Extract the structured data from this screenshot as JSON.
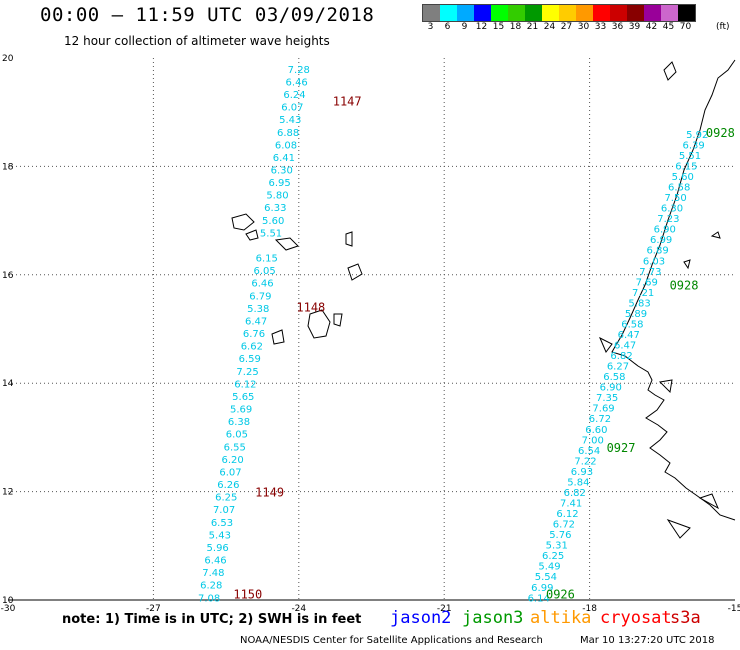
{
  "header": {
    "title": "00:00 – 11:59 UTC 03/09/2018",
    "subtitle": "12 hour collection of altimeter wave heights"
  },
  "color_scale": {
    "labels": [
      "3",
      "6",
      "9",
      "12",
      "15",
      "18",
      "21",
      "24",
      "27",
      "30",
      "33",
      "36",
      "39",
      "42",
      "45",
      "70"
    ],
    "unit": "(ft)",
    "colors": [
      "#7f7f7f",
      "#00ffff",
      "#00aaff",
      "#0000ff",
      "#00ff00",
      "#33cc00",
      "#009900",
      "#ffff00",
      "#ffcc00",
      "#ff9900",
      "#ff0000",
      "#cc0000",
      "#880000",
      "#990099",
      "#cc66cc",
      "#000000"
    ]
  },
  "chart_data": {
    "type": "map",
    "xlim": [
      -30,
      -15
    ],
    "ylim": [
      10,
      20
    ],
    "x_ticks": [
      "-30",
      "-27",
      "-24",
      "-21",
      "-18",
      "-15"
    ],
    "y_ticks": [
      "10",
      "12",
      "14",
      "16",
      "18",
      "20"
    ],
    "grid": true,
    "tracks": [
      {
        "label_color": "#00c8e6",
        "lon_start": -24.0,
        "lat_start": 19.8,
        "lon_end": -25.85,
        "lat_end": 10.05,
        "swh_ft": [
          "7.28",
          "6.46",
          "6.24",
          "6.07",
          "5.43",
          "6.88",
          "6.08",
          "6.41",
          "6.30",
          "6.95",
          "5.80",
          "6.33",
          "5.60",
          "5.51",
          "",
          "6.15",
          "6.05",
          "6.46",
          "6.79",
          "5.38",
          "6.47",
          "6.76",
          "6.62",
          "6.59",
          "7.25",
          "6.12",
          "5.65",
          "5.69",
          "6.38",
          "6.05",
          "6.55",
          "6.20",
          "6.07",
          "6.26",
          "6.25",
          "7.07",
          "6.53",
          "5.43",
          "5.96",
          "6.46",
          "7.48",
          "6.28",
          "7.08"
        ]
      },
      {
        "label_color": "#00c8e6",
        "lon_start": -15.78,
        "lat_start": 18.6,
        "lon_end": -19.05,
        "lat_end": 10.05,
        "swh_ft": [
          "5.92",
          "6.39",
          "5.51",
          "6.15",
          "5.60",
          "6.58",
          "7.50",
          "6.30",
          "7.23",
          "6.90",
          "6.99",
          "6.89",
          "6.03",
          "7.73",
          "7.69",
          "7.21",
          "5.83",
          "5.89",
          "6.58",
          "6.47",
          "6.47",
          "6.82",
          "6.27",
          "6.58",
          "6.90",
          "7.35",
          "7.69",
          "6.72",
          "6.60",
          "7.00",
          "6.54",
          "7.22",
          "6.93",
          "5.84",
          "6.82",
          "7.41",
          "6.12",
          "6.72",
          "5.76",
          "5.31",
          "6.25",
          "5.49",
          "5.54",
          "6.99",
          "6.14"
        ]
      }
    ],
    "time_labels": [
      {
        "text": "1147",
        "lon": -23.3,
        "lat": 19.2,
        "color": "#880000"
      },
      {
        "text": "1148",
        "lon": -24.05,
        "lat": 15.4,
        "color": "#880000"
      },
      {
        "text": "1149",
        "lon": -24.9,
        "lat": 11.98,
        "color": "#880000"
      },
      {
        "text": "1150",
        "lon": -25.35,
        "lat": 10.1,
        "color": "#880000"
      },
      {
        "text": "0928",
        "lon": -15.6,
        "lat": 18.62,
        "color": "#008800"
      },
      {
        "text": "0928",
        "lon": -16.35,
        "lat": 15.8,
        "color": "#008800"
      },
      {
        "text": "0927",
        "lon": -17.65,
        "lat": 12.8,
        "color": "#008800"
      },
      {
        "text": "0926",
        "lon": -18.9,
        "lat": 10.1,
        "color": "#008800"
      }
    ]
  },
  "note": "note: 1) Time is in UTC; 2) SWH is in feet",
  "legend": [
    {
      "name": "jason2",
      "color": "#0000ff"
    },
    {
      "name": "jason3",
      "color": "#009900"
    },
    {
      "name": "altika",
      "color": "#ff9900"
    },
    {
      "name": "cryosat",
      "color": "#ff0000"
    },
    {
      "name": "s3a",
      "color": "#cc0000"
    }
  ],
  "footer": {
    "credit": "NOAA/NESDIS Center for Satellite Applications and Research",
    "generated": "Mar 10 13:27:20 UTC 2018"
  }
}
